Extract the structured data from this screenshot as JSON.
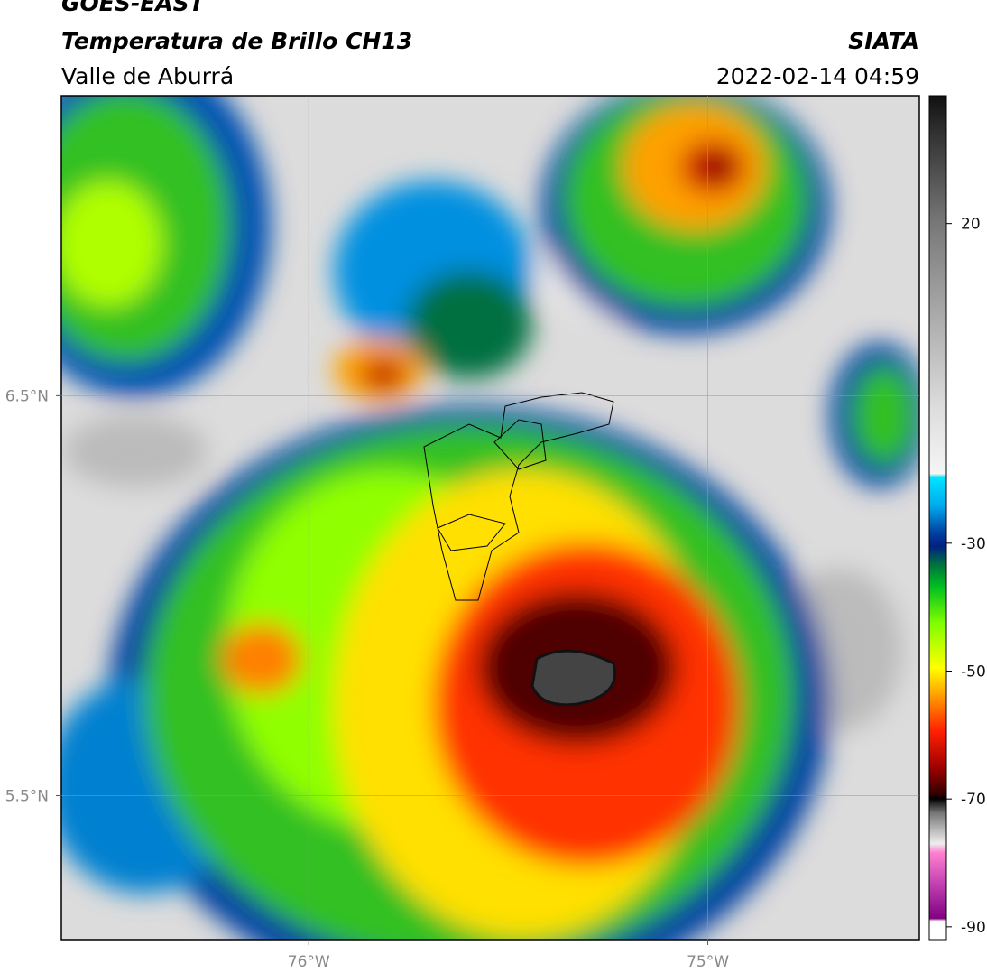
{
  "header": {
    "title": "GOES-EAST",
    "subtitle": "Temperatura de Brillo CH13",
    "region": "Valle de Aburrá",
    "source": "SIATA",
    "datetime": "2022-02-14 04:59"
  },
  "map": {
    "xlim": [
      -76.62,
      -74.47
    ],
    "ylim": [
      5.14,
      7.25
    ],
    "xticks": [
      {
        "value": -76,
        "label": "76°W"
      },
      {
        "value": -75,
        "label": "75°W"
      }
    ],
    "yticks": [
      {
        "value": 6.5,
        "label": "6.5°N"
      },
      {
        "value": 5.5,
        "label": "5.5°N"
      }
    ],
    "grid": true
  },
  "colorbar": {
    "clim": [
      -92,
      40
    ],
    "ticks": [
      20,
      -30,
      -50,
      -70,
      -90
    ]
  }
}
